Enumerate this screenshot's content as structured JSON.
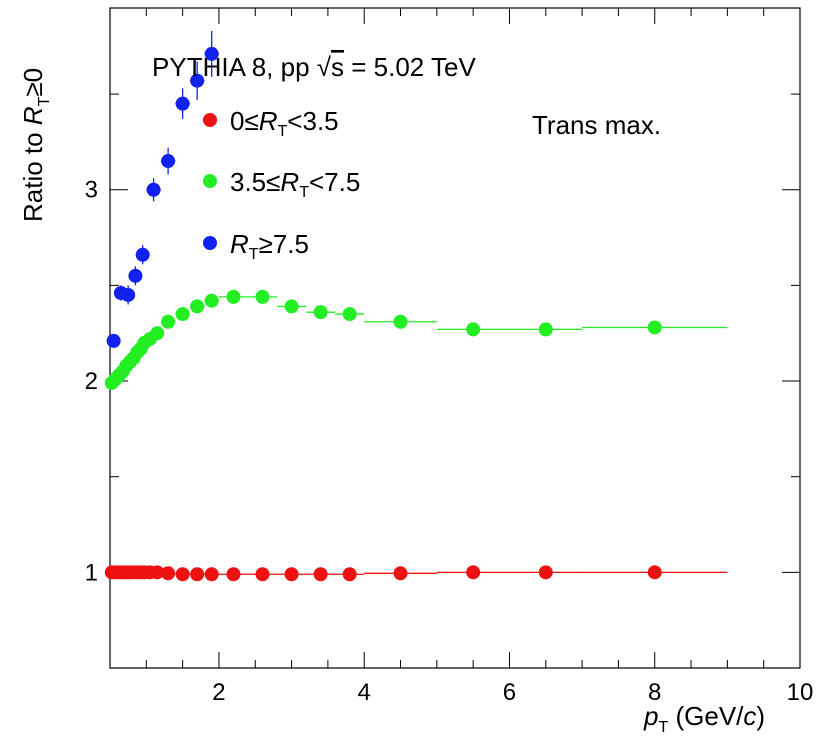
{
  "chart_data": {
    "type": "scatter",
    "title": "",
    "xlabel_main": "p",
    "xlabel_sub": "T",
    "xlabel_unit_open": " (GeV/",
    "xlabel_unit_var": "c",
    "xlabel_unit_close": ")",
    "ylabel_prefix": "Ratio to ",
    "ylabel_var": "R",
    "ylabel_sub": "T",
    "ylabel_suffix": "≥0",
    "xlim": [
      0.5,
      10
    ],
    "ylim": [
      0.5,
      3.95
    ],
    "x_ticks": [
      2,
      4,
      6,
      8,
      10
    ],
    "x_tick_labels": [
      "2",
      "4",
      "6",
      "8",
      "10"
    ],
    "y_ticks": [
      1,
      2,
      3
    ],
    "y_tick_labels": [
      "1",
      "2",
      "3"
    ],
    "grid": false,
    "legend_position": "top-left",
    "annotation_header": {
      "prefix": "PYTHIA 8, pp ",
      "sqrt_symbol": "√",
      "sqrt_arg": "s",
      "suffix": " = 5.02 TeV"
    },
    "annotation_region": "Trans max.",
    "series": [
      {
        "legend_lo": "0≤",
        "legend_var": "R",
        "legend_sub": "T",
        "legend_hi": "<3.5",
        "color": "#ee1111",
        "x": [
          0.525,
          0.575,
          0.625,
          0.675,
          0.725,
          0.775,
          0.825,
          0.875,
          0.925,
          0.975,
          1.05,
          1.15,
          1.3,
          1.5,
          1.7,
          1.9,
          2.2,
          2.6,
          3.0,
          3.4,
          3.8,
          4.5,
          5.5,
          6.5,
          8.0
        ],
        "y": [
          1.0,
          1.0,
          1.0,
          1.0,
          1.0,
          1.0,
          1.0,
          1.0,
          1.0,
          1.0,
          1.0,
          1.0,
          0.995,
          0.99,
          0.99,
          0.99,
          0.99,
          0.99,
          0.99,
          0.99,
          0.99,
          0.995,
          1.0,
          1.0,
          1.0
        ],
        "xerr": [
          0.025,
          0.025,
          0.025,
          0.025,
          0.025,
          0.025,
          0.025,
          0.025,
          0.025,
          0.025,
          0.05,
          0.05,
          0.1,
          0.1,
          0.1,
          0.1,
          0.2,
          0.2,
          0.2,
          0.2,
          0.2,
          0.5,
          0.5,
          0.5,
          1.0
        ],
        "yerr": [
          0.005,
          0.005,
          0.005,
          0.005,
          0.005,
          0.005,
          0.005,
          0.005,
          0.005,
          0.005,
          0.005,
          0.005,
          0.005,
          0.005,
          0.005,
          0.005,
          0.005,
          0.005,
          0.005,
          0.005,
          0.005,
          0.005,
          0.005,
          0.005,
          0.005
        ]
      },
      {
        "legend_lo": "3.5≤",
        "legend_var": "R",
        "legend_sub": "T",
        "legend_hi": "<7.5",
        "color": "#22ee22",
        "x": [
          0.525,
          0.575,
          0.625,
          0.675,
          0.725,
          0.775,
          0.825,
          0.875,
          0.925,
          0.975,
          1.05,
          1.15,
          1.3,
          1.5,
          1.7,
          1.9,
          2.2,
          2.6,
          3.0,
          3.4,
          3.8,
          4.5,
          5.5,
          6.5,
          8.0
        ],
        "y": [
          1.99,
          2.01,
          2.03,
          2.05,
          2.08,
          2.1,
          2.12,
          2.15,
          2.17,
          2.2,
          2.22,
          2.25,
          2.31,
          2.35,
          2.39,
          2.42,
          2.44,
          2.44,
          2.39,
          2.36,
          2.35,
          2.31,
          2.27,
          2.27,
          2.28
        ],
        "xerr": [
          0.025,
          0.025,
          0.025,
          0.025,
          0.025,
          0.025,
          0.025,
          0.025,
          0.025,
          0.025,
          0.05,
          0.05,
          0.1,
          0.1,
          0.1,
          0.1,
          0.2,
          0.2,
          0.2,
          0.2,
          0.2,
          0.5,
          0.5,
          0.5,
          1.0
        ],
        "yerr": [
          0.01,
          0.01,
          0.01,
          0.01,
          0.01,
          0.01,
          0.01,
          0.01,
          0.01,
          0.01,
          0.01,
          0.01,
          0.01,
          0.01,
          0.01,
          0.01,
          0.01,
          0.01,
          0.01,
          0.01,
          0.01,
          0.01,
          0.01,
          0.01,
          0.01
        ]
      },
      {
        "legend_lo": "",
        "legend_var": "R",
        "legend_sub": "T",
        "legend_hi": "≥7.5",
        "color": "#1122ee",
        "x": [
          0.55,
          0.65,
          0.75,
          0.85,
          0.95,
          1.1,
          1.3,
          1.5,
          1.7,
          1.9
        ],
        "y": [
          2.21,
          2.46,
          2.45,
          2.55,
          2.66,
          3.0,
          3.15,
          3.45,
          3.57,
          3.71
        ],
        "xerr": [
          0.05,
          0.05,
          0.05,
          0.05,
          0.05,
          0.1,
          0.1,
          0.1,
          0.1,
          0.1
        ],
        "yerr": [
          0.03,
          0.04,
          0.05,
          0.05,
          0.05,
          0.06,
          0.07,
          0.08,
          0.1,
          0.12
        ]
      }
    ]
  }
}
